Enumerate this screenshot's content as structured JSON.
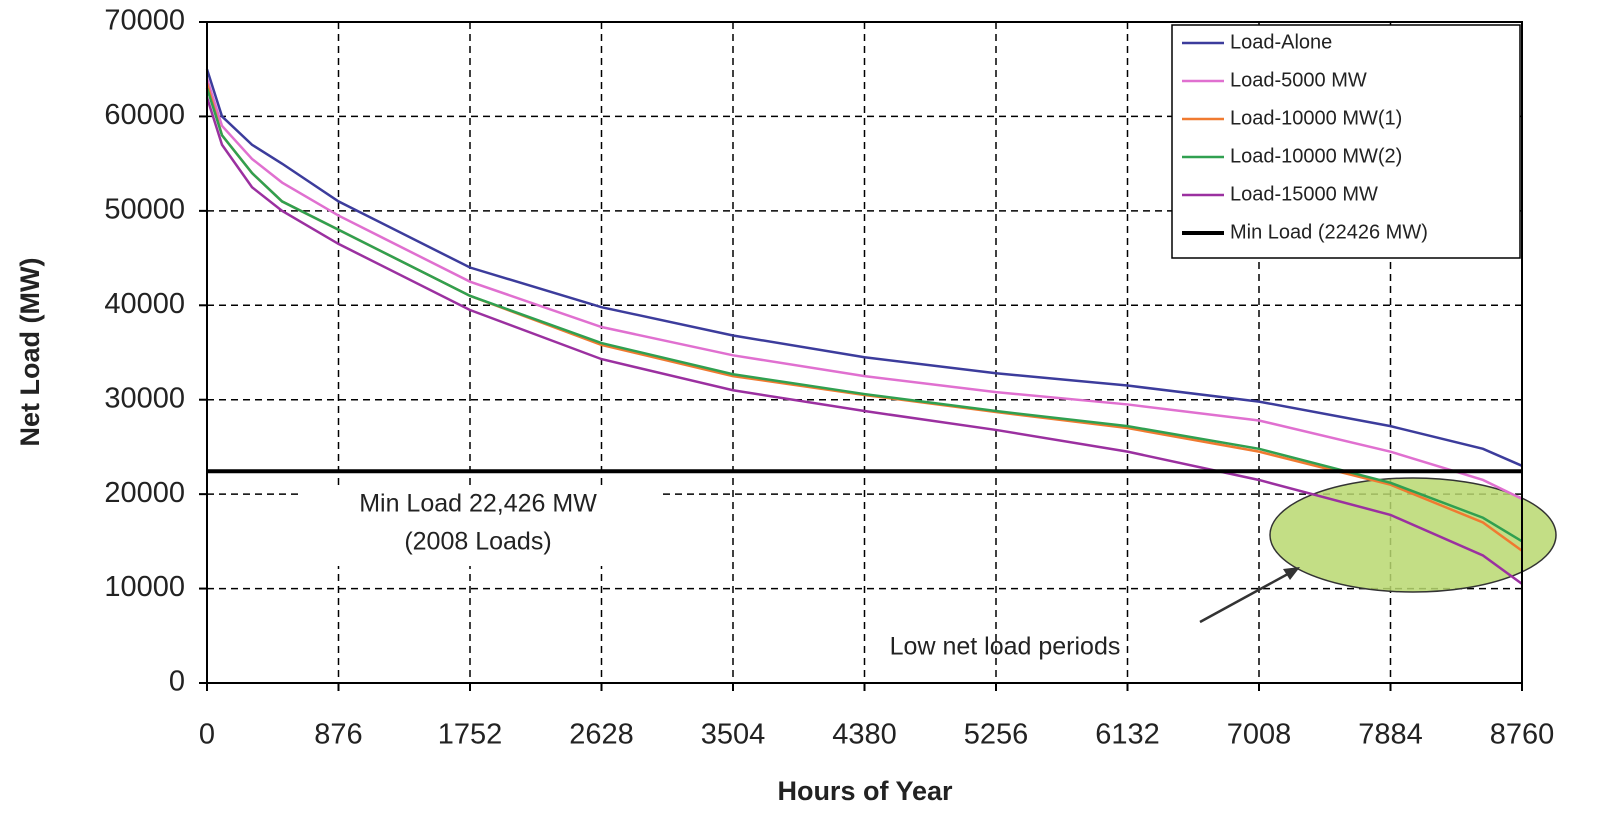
{
  "chart_data": {
    "type": "line",
    "x_label": "Hours of Year",
    "y_label": "Net Load (MW)",
    "x": [
      0,
      100,
      300,
      500,
      876,
      1752,
      2628,
      3504,
      4380,
      5256,
      6132,
      7008,
      7884,
      8500,
      8760
    ],
    "series": [
      {
        "name": "Load-Alone",
        "color": "#3c3c9c",
        "values": [
          65000,
          60000,
          57000,
          55000,
          51000,
          44000,
          39800,
          36800,
          34500,
          32800,
          31500,
          29800,
          27200,
          24800,
          23000
        ]
      },
      {
        "name": "Load-5000 MW",
        "color": "#e070d0",
        "values": [
          64000,
          59000,
          55500,
          53000,
          49500,
          42500,
          37700,
          34700,
          32500,
          30800,
          29500,
          27800,
          24500,
          21500,
          19500
        ]
      },
      {
        "name": "Load-10000 MW(1)",
        "color": "#f07a30",
        "values": [
          63500,
          58000,
          54000,
          51000,
          48000,
          41000,
          35800,
          32500,
          30500,
          28700,
          27000,
          24500,
          21000,
          17000,
          14000
        ]
      },
      {
        "name": "Load-10000 MW(2)",
        "color": "#30a050",
        "values": [
          63000,
          58000,
          54000,
          51000,
          48000,
          41000,
          36000,
          32700,
          30600,
          28800,
          27200,
          24800,
          21200,
          17500,
          15000
        ]
      },
      {
        "name": "Load-15000 MW",
        "color": "#9b30a0",
        "values": [
          62000,
          57000,
          52500,
          50000,
          46500,
          39500,
          34300,
          31000,
          28800,
          26800,
          24500,
          21500,
          17800,
          13500,
          10500
        ]
      },
      {
        "name": "Min Load (22426 MW)",
        "color": "#000000",
        "values": [
          22426,
          22426,
          22426,
          22426,
          22426,
          22426,
          22426,
          22426,
          22426,
          22426,
          22426,
          22426,
          22426,
          22426,
          22426
        ]
      }
    ],
    "xlim": [
      0,
      8760
    ],
    "ylim": [
      0,
      70000
    ],
    "xticks": [
      0,
      876,
      1752,
      2628,
      3504,
      4380,
      5256,
      6132,
      7008,
      7884,
      8760
    ],
    "yticks": [
      0,
      10000,
      20000,
      30000,
      40000,
      50000,
      60000,
      70000
    ],
    "grid": true,
    "legend": "upper right",
    "annotations": [
      "Min Load 22,426 MW",
      "(2008 Loads)",
      "Low net load periods"
    ]
  }
}
